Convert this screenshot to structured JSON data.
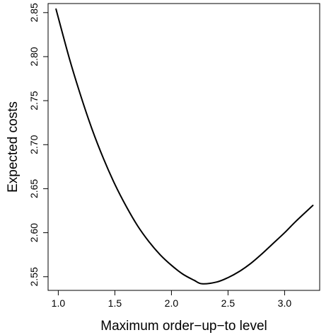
{
  "chart_data": {
    "type": "line",
    "title": "",
    "xlabel": "Maximum order−up−to level",
    "ylabel": "Expected costs",
    "xlim": [
      0.91,
      3.31
    ],
    "ylim": [
      2.5345,
      2.8603
    ],
    "grid": false,
    "legend": "none",
    "x_ticks": [
      {
        "value": 1.0,
        "label": "1.0"
      },
      {
        "value": 1.5,
        "label": "1.5"
      },
      {
        "value": 2.0,
        "label": "2.0"
      },
      {
        "value": 2.5,
        "label": "2.5"
      },
      {
        "value": 3.0,
        "label": "3.0"
      }
    ],
    "y_ticks": [
      {
        "value": 2.55,
        "label": "2.55"
      },
      {
        "value": 2.6,
        "label": "2.60"
      },
      {
        "value": 2.65,
        "label": "2.65"
      },
      {
        "value": 2.7,
        "label": "2.70"
      },
      {
        "value": 2.75,
        "label": "2.75"
      },
      {
        "value": 2.8,
        "label": "2.80"
      },
      {
        "value": 2.85,
        "label": "2.85"
      }
    ],
    "series": [
      {
        "color": "#000000",
        "x": [
          0.98,
          1.1,
          1.2,
          1.3,
          1.4,
          1.5,
          1.6,
          1.7,
          1.8,
          1.9,
          2.0,
          2.1,
          2.2,
          2.27,
          2.4,
          2.5,
          2.6,
          2.7,
          2.8,
          2.9,
          3.0,
          3.1,
          3.25
        ],
        "values": [
          2.854,
          2.797,
          2.755,
          2.717,
          2.684,
          2.655,
          2.63,
          2.608,
          2.59,
          2.575,
          2.563,
          2.553,
          2.546,
          2.542,
          2.544,
          2.549,
          2.556,
          2.565,
          2.576,
          2.588,
          2.6,
          2.613,
          2.631
        ]
      }
    ]
  }
}
